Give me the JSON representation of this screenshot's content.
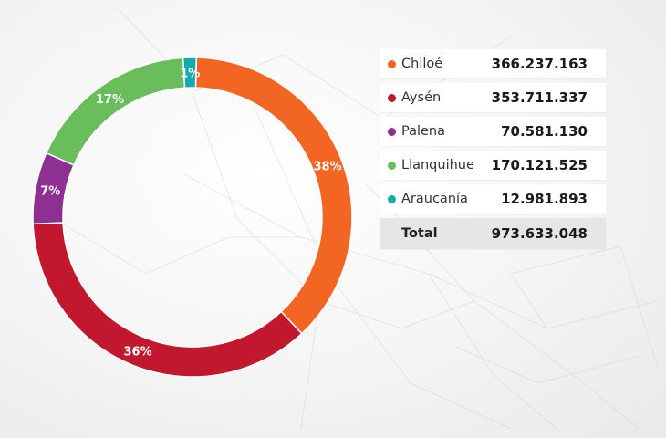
{
  "chart_data": {
    "type": "pie",
    "categories": [
      "Chiloé",
      "Aysén",
      "Palena",
      "Llanquihue",
      "Araucanía"
    ],
    "values": [
      366237163,
      353711337,
      70581130,
      170121525,
      12981893
    ],
    "percent_labels": [
      "38%",
      "36%",
      "7%",
      "17%",
      "1%"
    ],
    "colors": [
      "#f26522",
      "#c1182f",
      "#8e2f92",
      "#69bd5a",
      "#17a9b0"
    ],
    "donut": true
  },
  "table": {
    "rows": [
      {
        "name": "Chiloé",
        "value": "366.237.163",
        "color": "#f26522"
      },
      {
        "name": "Aysén",
        "value": "353.711.337",
        "color": "#c1182f"
      },
      {
        "name": "Palena",
        "value": "70.581.130",
        "color": "#8e2f92"
      },
      {
        "name": "Llanquihue",
        "value": "170.121.525",
        "color": "#69bd5a"
      },
      {
        "name": "Araucanía",
        "value": "12.981.893",
        "color": "#17a9b0"
      }
    ],
    "total_label": "Total",
    "total_value": "973.633.048"
  }
}
